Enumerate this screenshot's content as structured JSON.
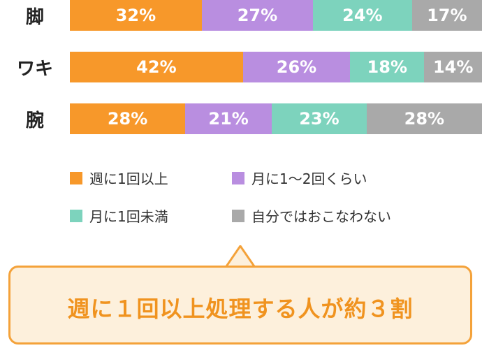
{
  "chart_data": {
    "type": "bar",
    "orientation": "horizontal",
    "stacked": "100%",
    "categories": [
      "脚",
      "ワキ",
      "腕"
    ],
    "series": [
      {
        "name": "週に1回以上",
        "color": "#f7982a",
        "values": [
          32,
          42,
          28
        ]
      },
      {
        "name": "月に1〜2回くらい",
        "color": "#b98ee0",
        "values": [
          27,
          26,
          21
        ]
      },
      {
        "name": "月に1回未満",
        "color": "#7dd3bd",
        "values": [
          24,
          18,
          23
        ]
      },
      {
        "name": "自分ではおこなわない",
        "color": "#a9a9a9",
        "values": [
          17,
          14,
          28
        ]
      }
    ],
    "value_suffix": "%",
    "legend": "bottom",
    "grid": false
  },
  "callout": {
    "text": "週に１回以上処理する人が約３割"
  }
}
